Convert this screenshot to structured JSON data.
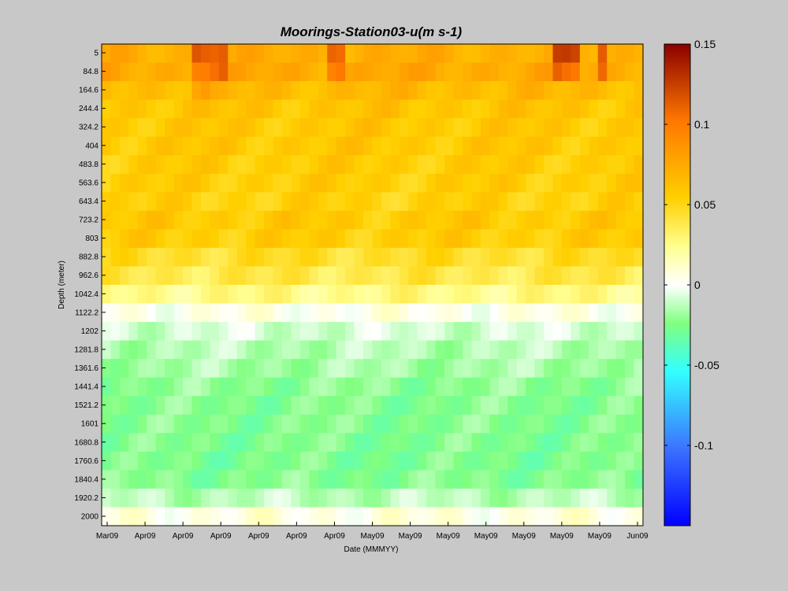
{
  "chart_data": {
    "type": "heatmap",
    "title": "Moorings-Station03-u(m s-1)",
    "xlabel": "Date (MMMYY)",
    "ylabel": "Depth (meter)",
    "x_tick_labels": [
      "Mar09",
      "Apr09",
      "Apr09",
      "Apr09",
      "Apr09",
      "Apr09",
      "Apr09",
      "May09",
      "May09",
      "May09",
      "May09",
      "May09",
      "May09",
      "May09",
      "Jun09"
    ],
    "y_tick_labels": [
      "5",
      "84.8",
      "164.6",
      "244.4",
      "324.2",
      "404",
      "483.8",
      "563.6",
      "643.4",
      "723.2",
      "803",
      "882.8",
      "962.6",
      "1042.4",
      "1122.2",
      "1202",
      "1281.8",
      "1361.6",
      "1441.4",
      "1521.2",
      "1601",
      "1680.8",
      "1760.6",
      "1840.4",
      "1920.2",
      "2000"
    ],
    "depths": [
      5,
      84.8,
      164.6,
      244.4,
      324.2,
      404,
      483.8,
      563.6,
      643.4,
      723.2,
      803,
      882.8,
      962.6,
      1042.4,
      1122.2,
      1202,
      1281.8,
      1361.6,
      1441.4,
      1521.2,
      1601,
      1680.8,
      1760.6,
      1840.4,
      1920.2,
      2000
    ],
    "depth_profile_u": [
      0.072,
      0.075,
      0.066,
      0.06,
      0.058,
      0.058,
      0.056,
      0.055,
      0.053,
      0.057,
      0.055,
      0.045,
      0.038,
      0.026,
      0.004,
      -0.008,
      -0.014,
      -0.017,
      -0.022,
      -0.024,
      -0.024,
      -0.025,
      -0.026,
      -0.024,
      -0.013,
      0.006
    ],
    "time_steps": 60,
    "time_range": [
      "Mar09",
      "Jun09"
    ],
    "colorbar": {
      "min": -0.15,
      "max": 0.15,
      "tick_labels": [
        "0.15",
        "0.1",
        "0.05",
        "0",
        "-0.05",
        "-0.1"
      ],
      "tick_values": [
        0.15,
        0.1,
        0.05,
        0,
        -0.05,
        -0.1
      ],
      "colormap": "blue-cyan-green-white-yellow-orange-red"
    }
  }
}
